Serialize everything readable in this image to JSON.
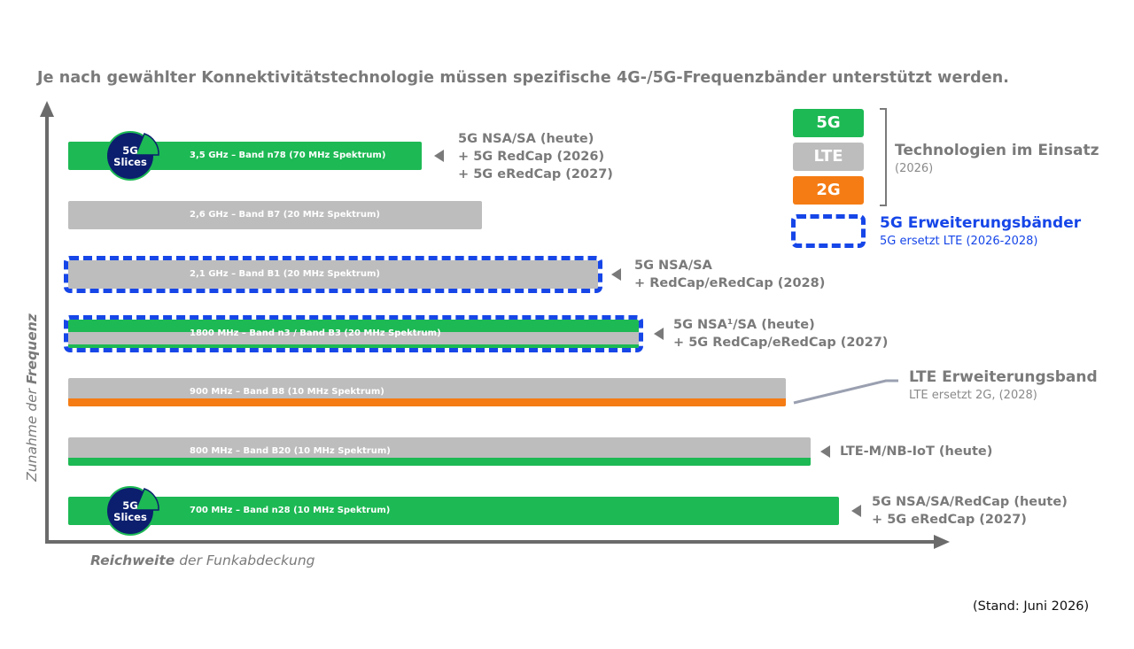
{
  "headline": "Je nach gewählter Konnektivitätstechnologie müssen spezifische 4G-/5G-Frequenzbänder unterstützt werden.",
  "axes": {
    "y": {
      "prefix": "Zunahme der ",
      "emphasis": "Frequenz"
    },
    "x": {
      "emphasis": "Reichweite",
      "suffix": " der Funkabdeckung"
    }
  },
  "colors": {
    "green": "#1db954",
    "gray": "#bdbdbd",
    "orange": "#f57c14",
    "blue_dashed": "#1646e8",
    "navy": "#0b1f6e",
    "text_gray": "#7a7a7a"
  },
  "bands": [
    {
      "label": "3,5 GHz – Band n78 (70 MHz Spektrum)",
      "base": "green",
      "stripe": null,
      "extension": false,
      "slices": true,
      "technologies": [
        "5G NSA/SA (heute)",
        "+ 5G RedCap (2026)",
        "+ 5G eRedCap (2027)"
      ]
    },
    {
      "label": "2,6 GHz – Band B7 (20 MHz Spektrum)",
      "base": "gray",
      "stripe": null,
      "extension": false,
      "slices": false,
      "technologies": []
    },
    {
      "label": "2,1 GHz – Band B1 (20 MHz Spektrum)",
      "base": "gray",
      "stripe": null,
      "extension": true,
      "slices": false,
      "technologies": [
        "5G NSA/SA",
        "+ RedCap/eRedCap (2028)"
      ]
    },
    {
      "label": "1800 MHz – Band n3 / Band B3 (20 MHz Spektrum)",
      "base": "green",
      "stripe": "gray",
      "extension": true,
      "slices": false,
      "technologies": [
        "5G NSA¹/SA (heute)",
        "+ 5G RedCap/eRedCap (2027)"
      ]
    },
    {
      "label": "900 MHz – Band B8 (10 MHz Spektrum)",
      "base": "gray",
      "stripe": "orange",
      "extension": false,
      "slices": false,
      "technologies": []
    },
    {
      "label": "800 MHz – Band B20 (10 MHz Spektrum)",
      "base": "gray",
      "stripe": "green",
      "extension": false,
      "slices": false,
      "technologies": [
        "LTE-M/NB-IoT (heute)"
      ]
    },
    {
      "label": "700 MHz – Band n28 (10 MHz Spektrum)",
      "base": "green",
      "stripe": null,
      "extension": false,
      "slices": true,
      "technologies": [
        "5G NSA/SA/RedCap (heute)",
        "+ 5G eRedCap (2027)"
      ]
    }
  ],
  "slices_badge": {
    "line1": "5G",
    "line2": "Slices"
  },
  "legend": {
    "boxes": [
      {
        "label": "5G",
        "color": "green"
      },
      {
        "label": "LTE",
        "color": "gray"
      },
      {
        "label": "2G",
        "color": "orange"
      }
    ],
    "tech_title": "Technologien im Einsatz",
    "tech_year": "(2026)",
    "ext_title": "5G Erweiterungsbänder",
    "ext_sub": "5G ersetzt LTE (2026-2028)"
  },
  "lte_extension": {
    "title": "LTE Erweiterungsband",
    "subtitle": "LTE ersetzt 2G, (2028)"
  },
  "footnote": "(Stand: Juni 2026)"
}
